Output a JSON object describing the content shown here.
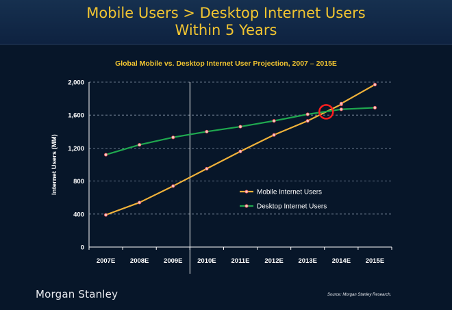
{
  "header": {
    "title_line1": "Mobile Users > Desktop Internet Users",
    "title_line2": "Within 5 Years"
  },
  "footer": {
    "logo": "Morgan Stanley",
    "source": "Source: Morgan Stanley Research."
  },
  "colors": {
    "mobile": "#f0b23a",
    "desktop": "#1fa84f",
    "marker_fill": "#f7c6c6",
    "marker_stroke": "#e24d4d",
    "highlight": "#ff1f1f",
    "title": "#f2c531"
  },
  "chart_data": {
    "type": "line",
    "title": "Global Mobile vs. Desktop Internet User Projection, 2007 – 2015E",
    "ylabel": "Internet Users (MM)",
    "xlabel": "",
    "categories": [
      "2007E",
      "2008E",
      "2009E",
      "2010E",
      "2011E",
      "2012E",
      "2013E",
      "2014E",
      "2015E"
    ],
    "ylim": [
      0,
      2000
    ],
    "yticks": [
      0,
      400,
      800,
      1200,
      1600,
      2000
    ],
    "ytick_labels": [
      "0",
      "400",
      "800",
      "1,200",
      "1,600",
      "2,000"
    ],
    "grid": "horizontal-dashed",
    "legend_position": "center-right",
    "divider_after_category": 2,
    "series": [
      {
        "name": "Mobile Internet Users",
        "color_key": "mobile",
        "points": [
          [
            0,
            390
          ],
          [
            1,
            540
          ],
          [
            2,
            740
          ],
          [
            3,
            950
          ],
          [
            4,
            1160
          ],
          [
            5,
            1360
          ],
          [
            6,
            1530
          ],
          [
            7,
            1730
          ],
          [
            7.0,
            1740
          ],
          [
            8,
            1970
          ]
        ]
      },
      {
        "name": "Desktop Internet Users",
        "color_key": "desktop",
        "points": [
          [
            0,
            1120
          ],
          [
            1,
            1240
          ],
          [
            2,
            1330
          ],
          [
            3,
            1400
          ],
          [
            4,
            1460
          ],
          [
            5,
            1530
          ],
          [
            6,
            1610
          ],
          [
            7,
            1670
          ],
          [
            8,
            1690
          ]
        ]
      }
    ],
    "crossover_marker": {
      "x": 6.55,
      "y": 1640
    }
  }
}
